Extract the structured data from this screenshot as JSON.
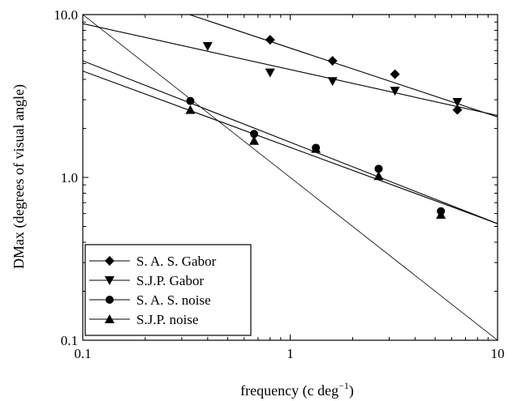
{
  "chart_data": {
    "type": "scatter",
    "title": "",
    "xlabel": "frequency (c deg",
    "xlabel_sup": "−1",
    "xlabel_close": ")",
    "ylabel": "DMax (degrees of visual angle)",
    "xscale": "log",
    "yscale": "log",
    "xlim": [
      0.1,
      10
    ],
    "ylim": [
      0.1,
      10
    ],
    "x_ticks": [
      {
        "value": 0.1,
        "label": "0.1"
      },
      {
        "value": 1,
        "label": "1"
      },
      {
        "value": 10,
        "label": "10"
      }
    ],
    "y_ticks": [
      {
        "value": 0.1,
        "label": "0.1"
      },
      {
        "value": 1,
        "label": "1.0"
      },
      {
        "value": 10,
        "label": "10.0"
      }
    ],
    "grid": false,
    "legend_position": "bottom-left",
    "series": [
      {
        "name": "S. A. S. Gabor",
        "marker": "diamond",
        "x": [
          0.8,
          1.6,
          3.2,
          6.4
        ],
        "y": [
          7.0,
          5.2,
          4.3,
          2.6
        ],
        "fit": {
          "x": [
            0.1,
            10
          ],
          "y": [
            16.5,
            2.35
          ]
        }
      },
      {
        "name": "S.J.P. Gabor",
        "marker": "triangle-down",
        "x": [
          0.4,
          0.8,
          1.6,
          3.2,
          6.4
        ],
        "y": [
          6.4,
          4.4,
          3.9,
          3.4,
          2.9
        ],
        "fit": {
          "x": [
            0.1,
            10
          ],
          "y": [
            8.8,
            2.4
          ]
        }
      },
      {
        "name": "S. A. S. noise",
        "marker": "circle",
        "x": [
          0.33,
          0.67,
          1.33,
          2.67,
          5.33
        ],
        "y": [
          2.95,
          1.85,
          1.52,
          1.13,
          0.62
        ],
        "fit": {
          "x": [
            0.1,
            10
          ],
          "y": [
            5.2,
            0.52
          ]
        }
      },
      {
        "name": "S.J.P. noise",
        "marker": "triangle-up",
        "x": [
          0.33,
          0.67,
          1.33,
          2.67,
          5.33
        ],
        "y": [
          2.6,
          1.68,
          1.5,
          1.02,
          0.59
        ],
        "fit": {
          "x": [
            0.1,
            10
          ],
          "y": [
            4.5,
            0.52
          ]
        }
      }
    ],
    "reference_line": {
      "x": [
        0.1,
        10
      ],
      "y": [
        10,
        0.1
      ]
    }
  }
}
